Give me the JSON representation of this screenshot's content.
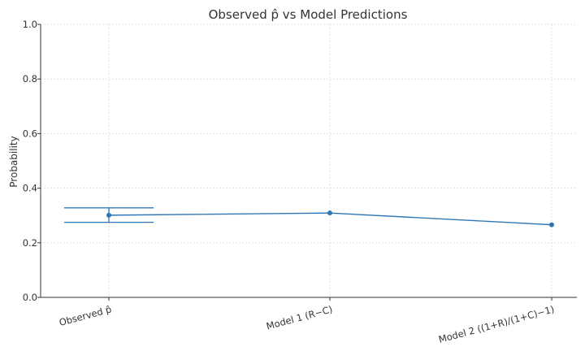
{
  "chart_data": {
    "type": "line",
    "title": "Observed p̂ vs Model Predictions",
    "xlabel": "",
    "ylabel": "Probability",
    "categories": [
      "Observed p̂",
      "Model 1 (R−C)",
      "Model 2 ((1+R)/(1+C)−1)"
    ],
    "values": [
      0.301,
      0.309,
      0.266
    ],
    "error_bar": {
      "category": "Observed p̂",
      "low": 0.275,
      "high": 0.328
    },
    "ylim": [
      0,
      1
    ],
    "yticks": [
      "0.0",
      "0.2",
      "0.4",
      "0.6",
      "0.8",
      "1.0"
    ],
    "grid": true,
    "legend": "none",
    "colors": {
      "series": "#2f77b4",
      "grid": "#d9d9d9",
      "axis": "#333333"
    }
  }
}
